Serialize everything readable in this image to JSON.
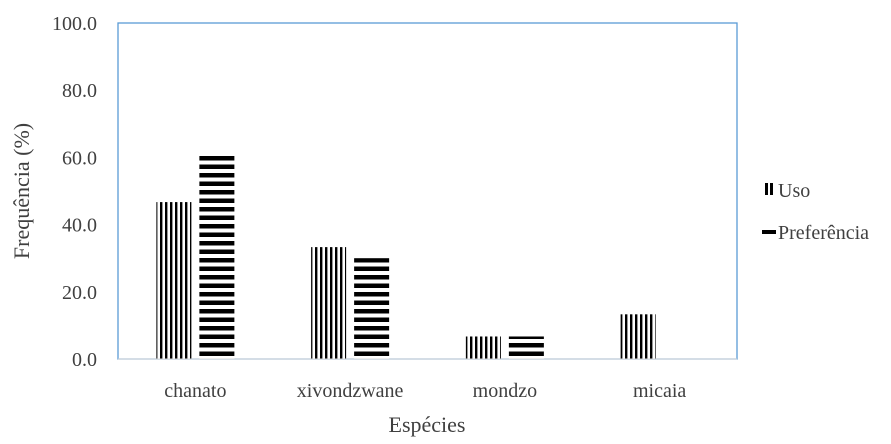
{
  "chart_data": {
    "type": "bar",
    "title": "",
    "xlabel": "Espécies",
    "ylabel": "Frequência (%)",
    "categories": [
      "chanato",
      "xivondzwane",
      "mondzo",
      "micaia"
    ],
    "series": [
      {
        "name": "Uso",
        "pattern": "vertical-stripes",
        "values": [
          46.7,
          33.3,
          6.7,
          13.3
        ]
      },
      {
        "name": "Preferência",
        "pattern": "horizontal-stripes",
        "values": [
          61.5,
          30.0,
          6.7,
          0
        ]
      }
    ],
    "ylim": [
      0,
      100
    ],
    "yticks": [
      "0.0",
      "20.0",
      "40.0",
      "60.0",
      "80.0",
      "100.0"
    ],
    "grid": false,
    "legend_position": "right",
    "colors": {
      "bars": "#000000",
      "plot_border": "#5b9bd5",
      "text": "#404040"
    }
  }
}
